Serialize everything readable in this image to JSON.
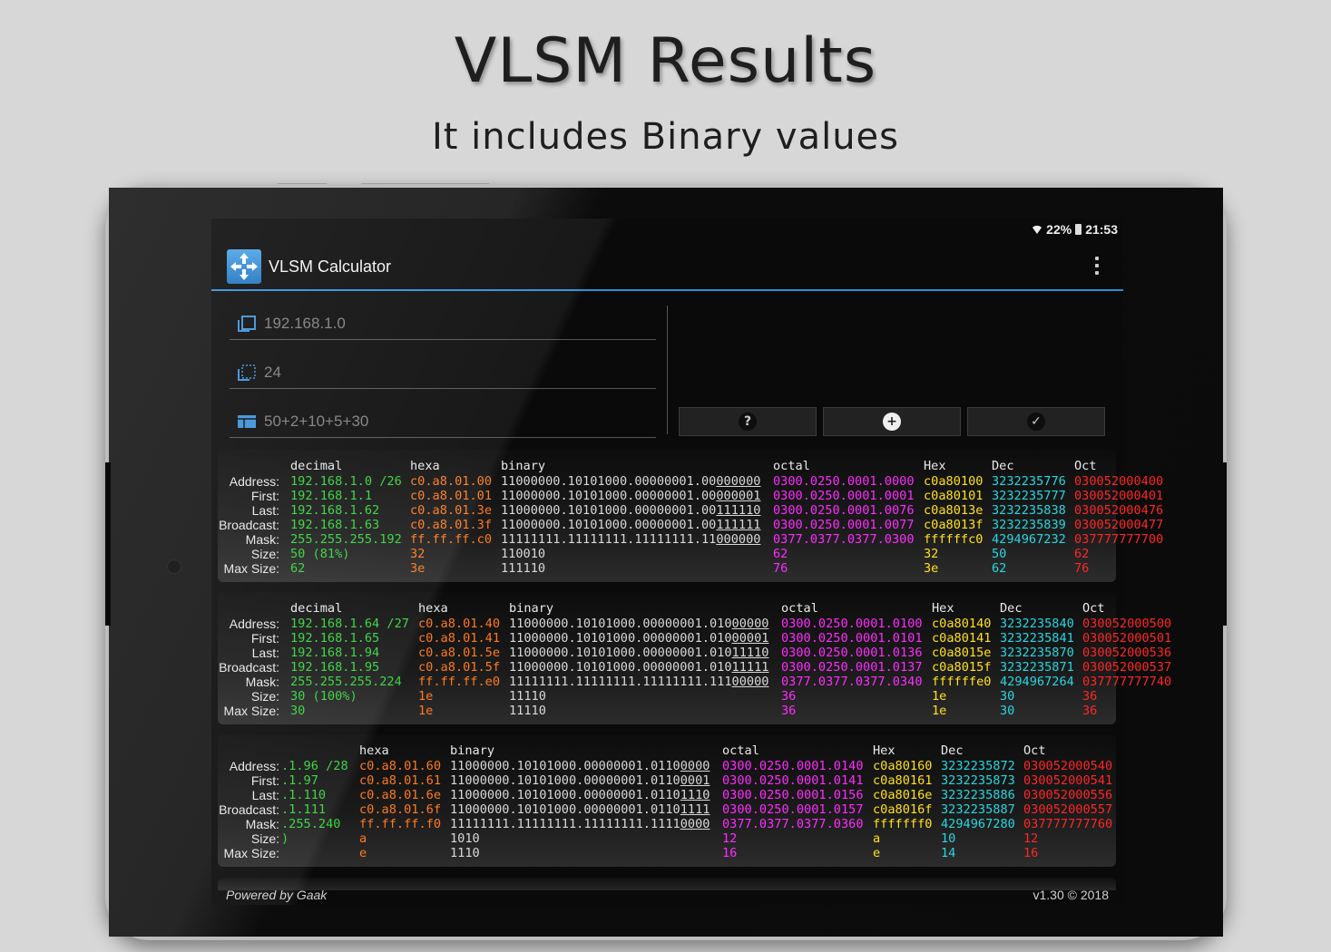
{
  "promo": {
    "title": "VLSM Results",
    "subtitle": "It includes Binary values"
  },
  "status_bar": {
    "battery": "22%",
    "time": "21:53"
  },
  "app_bar": {
    "title": "VLSM Calculator"
  },
  "inputs": {
    "ip_placeholder": "192.168.1.0",
    "mask_placeholder": "24",
    "sizes_placeholder": "50+2+10+5+30"
  },
  "icons": {
    "app_logo": "network-router-icon",
    "ip_field": "copy-icon",
    "mask_field": "selection-icon",
    "sizes_field": "table-icon",
    "help": "help-circle-icon",
    "add": "plus-circle-icon",
    "check": "check-circle-icon",
    "menu": "more-vert-icon",
    "wifi": "wifi-icon",
    "battery": "battery-icon"
  },
  "colors": {
    "accent": "#2f8fd4",
    "decimal": "#33d33a",
    "hexa": "#ff7a1f",
    "binary": "#d8d8d8",
    "octal": "#ff2cff",
    "hex": "#ffe11e",
    "dec": "#2ad6e0",
    "oct": "#ff2626"
  },
  "row_labels": [
    "Address:",
    "First:",
    "Last:",
    "Broadcast:",
    "Mask:",
    "Size:",
    "Max Size:"
  ],
  "results": [
    {
      "headers": {
        "decimal": "decimal",
        "hexa": "hexa",
        "binary": "binary",
        "octal": "octal",
        "hex": "Hex",
        "dec": "Dec",
        "oct": "Oct"
      },
      "rows": [
        {
          "decimal": "192.168.1.0 /26",
          "hexa": "c0.a8.01.00",
          "bin_net": "11000000.10101000.00000001.00",
          "bin_host": "000000",
          "octal": "0300.0250.0001.0000",
          "hex": "c0a80100",
          "dec": "3232235776",
          "oct": "030052000400"
        },
        {
          "decimal": "192.168.1.1",
          "hexa": "c0.a8.01.01",
          "bin_net": "11000000.10101000.00000001.00",
          "bin_host": "000001",
          "octal": "0300.0250.0001.0001",
          "hex": "c0a80101",
          "dec": "3232235777",
          "oct": "030052000401"
        },
        {
          "decimal": "192.168.1.62",
          "hexa": "c0.a8.01.3e",
          "bin_net": "11000000.10101000.00000001.00",
          "bin_host": "111110",
          "octal": "0300.0250.0001.0076",
          "hex": "c0a8013e",
          "dec": "3232235838",
          "oct": "030052000476"
        },
        {
          "decimal": "192.168.1.63",
          "hexa": "c0.a8.01.3f",
          "bin_net": "11000000.10101000.00000001.00",
          "bin_host": "111111",
          "octal": "0300.0250.0001.0077",
          "hex": "c0a8013f",
          "dec": "3232235839",
          "oct": "030052000477"
        },
        {
          "decimal": "255.255.255.192",
          "hexa": "ff.ff.ff.c0",
          "bin_net": "11111111.11111111.11111111.11",
          "bin_host": "000000",
          "octal": "0377.0377.0377.0300",
          "hex": "ffffffc0",
          "dec": "4294967232",
          "oct": "037777777700"
        },
        {
          "decimal": "50 (81%)",
          "hexa": "32",
          "bin_net": "110010",
          "bin_host": "",
          "octal": "62",
          "hex": "32",
          "dec": "50",
          "oct": "62"
        },
        {
          "decimal": "62",
          "hexa": "3e",
          "bin_net": "111110",
          "bin_host": "",
          "octal": "76",
          "hex": "3e",
          "dec": "62",
          "oct": "76"
        }
      ]
    },
    {
      "headers": {
        "decimal": "decimal",
        "hexa": "hexa",
        "binary": "binary",
        "octal": "octal",
        "hex": "Hex",
        "dec": "Dec",
        "oct": "Oct"
      },
      "rows": [
        {
          "decimal": "192.168.1.64 /27",
          "hexa": "c0.a8.01.40",
          "bin_net": "11000000.10101000.00000001.010",
          "bin_host": "00000",
          "octal": "0300.0250.0001.0100",
          "hex": "c0a80140",
          "dec": "3232235840",
          "oct": "030052000500"
        },
        {
          "decimal": "192.168.1.65",
          "hexa": "c0.a8.01.41",
          "bin_net": "11000000.10101000.00000001.010",
          "bin_host": "00001",
          "octal": "0300.0250.0001.0101",
          "hex": "c0a80141",
          "dec": "3232235841",
          "oct": "030052000501"
        },
        {
          "decimal": "192.168.1.94",
          "hexa": "c0.a8.01.5e",
          "bin_net": "11000000.10101000.00000001.010",
          "bin_host": "11110",
          "octal": "0300.0250.0001.0136",
          "hex": "c0a8015e",
          "dec": "3232235870",
          "oct": "030052000536"
        },
        {
          "decimal": "192.168.1.95",
          "hexa": "c0.a8.01.5f",
          "bin_net": "11000000.10101000.00000001.010",
          "bin_host": "11111",
          "octal": "0300.0250.0001.0137",
          "hex": "c0a8015f",
          "dec": "3232235871",
          "oct": "030052000537"
        },
        {
          "decimal": "255.255.255.224",
          "hexa": "ff.ff.ff.e0",
          "bin_net": "11111111.11111111.11111111.111",
          "bin_host": "00000",
          "octal": "0377.0377.0377.0340",
          "hex": "ffffffe0",
          "dec": "4294967264",
          "oct": "037777777740"
        },
        {
          "decimal": "30 (100%)",
          "hexa": "1e",
          "bin_net": "11110",
          "bin_host": "",
          "octal": "36",
          "hex": "1e",
          "dec": "30",
          "oct": "36"
        },
        {
          "decimal": "30",
          "hexa": "1e",
          "bin_net": "11110",
          "bin_host": "",
          "octal": "36",
          "hex": "1e",
          "dec": "30",
          "oct": "36"
        }
      ]
    },
    {
      "headers": {
        "decimal": "",
        "hexa": "hexa",
        "binary": "binary",
        "octal": "octal",
        "hex": "Hex",
        "dec": "Dec",
        "oct": "Oct"
      },
      "rows": [
        {
          "decimal": ".1.96 /28",
          "hexa": "c0.a8.01.60",
          "bin_net": "11000000.10101000.00000001.0110",
          "bin_host": "0000",
          "octal": "0300.0250.0001.0140",
          "hex": "c0a80160",
          "dec": "3232235872",
          "oct": "030052000540"
        },
        {
          "decimal": ".1.97",
          "hexa": "c0.a8.01.61",
          "bin_net": "11000000.10101000.00000001.0110",
          "bin_host": "0001",
          "octal": "0300.0250.0001.0141",
          "hex": "c0a80161",
          "dec": "3232235873",
          "oct": "030052000541"
        },
        {
          "decimal": ".1.110",
          "hexa": "c0.a8.01.6e",
          "bin_net": "11000000.10101000.00000001.0110",
          "bin_host": "1110",
          "octal": "0300.0250.0001.0156",
          "hex": "c0a8016e",
          "dec": "3232235886",
          "oct": "030052000556"
        },
        {
          "decimal": ".1.111",
          "hexa": "c0.a8.01.6f",
          "bin_net": "11000000.10101000.00000001.0110",
          "bin_host": "1111",
          "octal": "0300.0250.0001.0157",
          "hex": "c0a8016f",
          "dec": "3232235887",
          "oct": "030052000557"
        },
        {
          "decimal": ".255.240",
          "hexa": "ff.ff.ff.f0",
          "bin_net": "11111111.11111111.11111111.1111",
          "bin_host": "0000",
          "octal": "0377.0377.0377.0360",
          "hex": "fffffff0",
          "dec": "4294967280",
          "oct": "037777777760"
        },
        {
          "decimal": ")",
          "hexa": "a",
          "bin_net": "1010",
          "bin_host": "",
          "octal": "12",
          "hex": "a",
          "dec": "10",
          "oct": "12"
        },
        {
          "decimal": "",
          "hexa": "e",
          "bin_net": "1110",
          "bin_host": "",
          "octal": "16",
          "hex": "e",
          "dec": "14",
          "oct": "16"
        }
      ]
    }
  ],
  "footer": {
    "powered_by": "Powered by Gaak",
    "version": "v1.30 © 2018"
  }
}
